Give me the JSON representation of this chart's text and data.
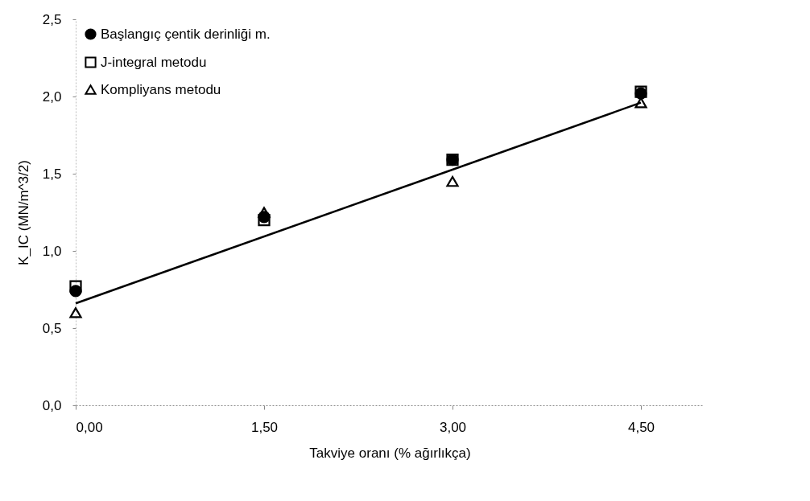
{
  "chart_data": {
    "type": "scatter",
    "xlabel": "Takviye oranı (% ağırlıkça)",
    "ylabel": "K_IC (MN/m^3/2)",
    "x": [
      0,
      1.5,
      3.0,
      4.5
    ],
    "series": [
      {
        "name": "Başlangıç çentik derinliği m.",
        "color": "#000000",
        "marker": "circle",
        "values": [
          0.74,
          1.22,
          1.59,
          2.02
        ]
      },
      {
        "name": "J-integral metodu",
        "color": "#000000",
        "marker": "square",
        "values": [
          0.77,
          1.2,
          1.59,
          2.03
        ]
      },
      {
        "name": "Kompliyans metodu",
        "color": "#000000",
        "marker": "triangle",
        "values": [
          0.6,
          1.25,
          1.45,
          1.96
        ]
      },
      {
        "type": "line",
        "color": "#000000",
        "x": [
          0,
          4.5
        ],
        "values": [
          0.66,
          1.96
        ]
      }
    ],
    "xlim": [
      0,
      5.0
    ],
    "xticks": [
      {
        "value": 0,
        "label": "0,00"
      },
      {
        "value": 1.5,
        "label": "1,50"
      },
      {
        "value": 3.0,
        "label": "3,00"
      },
      {
        "value": 4.5,
        "label": "4,50"
      }
    ],
    "ylim": [
      0,
      2.5
    ],
    "yticks": [
      {
        "value": 0,
        "label": "0,0"
      },
      {
        "value": 0.5,
        "label": "0,5"
      },
      {
        "value": 1.0,
        "label": "1,0"
      },
      {
        "value": 1.5,
        "label": "1,5"
      },
      {
        "value": 2.0,
        "label": "2,0"
      },
      {
        "value": 2.5,
        "label": "2,5"
      }
    ],
    "grid": false,
    "legend": "top left"
  }
}
